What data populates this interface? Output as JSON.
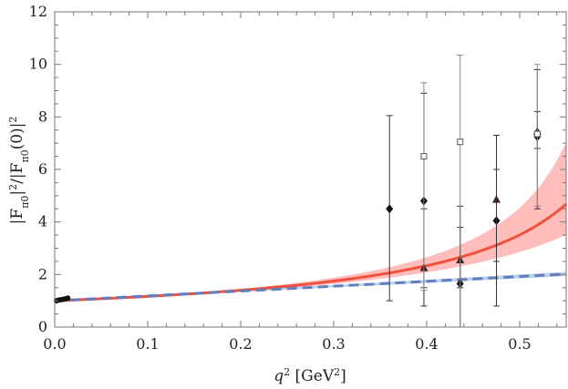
{
  "chart_data": {
    "type": "scatter",
    "title": "",
    "xlabel": {
      "main": "q",
      "sup": "2",
      "unit_open": " [GeV",
      "unit_sup": "2",
      "unit_close": "]"
    },
    "ylabel": {
      "p1": "|F",
      "s1": "π0",
      "p2": "|",
      "sup1": "2",
      "p3": "/|F",
      "s2": "π0",
      "p4": "(0)|",
      "sup2": "2"
    },
    "xlim": [
      0,
      0.55
    ],
    "ylim": [
      0,
      12
    ],
    "xticks": [
      "0.0",
      "0.1",
      "0.2",
      "0.3",
      "0.4",
      "0.5"
    ],
    "xtick_values": [
      0.0,
      0.1,
      0.2,
      0.3,
      0.4,
      0.5
    ],
    "yticks": [
      "0",
      "2",
      "4",
      "6",
      "8",
      "10",
      "12"
    ],
    "ytick_values": [
      0,
      2,
      4,
      6,
      8,
      10,
      12
    ],
    "grid": false,
    "colors": {
      "red_curve": "#f0503c",
      "red_band": "#ffb3b0",
      "blue_curve": "#5f7fc0",
      "blue_band": "#b9cbe8",
      "markers": "#111111",
      "triangle_marker": "#3a2424",
      "errorbar": "#333333",
      "square_errorbar": "#888888",
      "frame": "#777777"
    },
    "curves": [
      {
        "style": "solid",
        "form": "1/(1-a*q2)",
        "a": 1.43,
        "band": {
          "low_a": 1.3,
          "high_a": 1.56
        }
      },
      {
        "style": "dashed",
        "form": "1+b*q2",
        "b": 1.85,
        "band": {
          "low_b": 1.7,
          "high_b": 2.0
        }
      }
    ],
    "series": [
      {
        "marker": "diamond",
        "points": [
          {
            "x": 0.36,
            "y": 4.5,
            "ylo": 1.0,
            "yhi": 8.05
          },
          {
            "x": 0.397,
            "y": 4.8,
            "ylo": 0.8,
            "yhi": 8.9
          },
          {
            "x": 0.436,
            "y": 1.65,
            "ylo": 0.0,
            "yhi": 4.6
          },
          {
            "x": 0.475,
            "y": 4.05,
            "ylo": 0.8,
            "yhi": 7.3
          },
          {
            "x": 0.519,
            "y": 7.25,
            "ylo": 4.5,
            "yhi": 9.8
          }
        ]
      },
      {
        "marker": "triangle",
        "points": [
          {
            "x": 0.397,
            "y": 2.25,
            "ylo": 1.5,
            "yhi": 4.5
          },
          {
            "x": 0.436,
            "y": 2.55,
            "ylo": 1.5,
            "yhi": 3.8
          },
          {
            "x": 0.475,
            "y": 4.85,
            "ylo": 2.5,
            "yhi": 6.0
          },
          {
            "x": 0.519,
            "y": 7.45,
            "ylo": 6.8,
            "yhi": 8.2
          }
        ]
      },
      {
        "marker": "square-open",
        "points": [
          {
            "x": 0.397,
            "y": 6.5,
            "ylo": 1.4,
            "yhi": 9.3
          },
          {
            "x": 0.436,
            "y": 7.05,
            "ylo": 0.0,
            "yhi": 10.35
          },
          {
            "x": 0.519,
            "y": 7.35,
            "ylo": 4.6,
            "yhi": 10.0
          }
        ]
      },
      {
        "marker": "circle-small",
        "points": [
          {
            "x": 0.002,
            "y": 1.0,
            "ylo": 0.92,
            "yhi": 1.1
          },
          {
            "x": 0.005,
            "y": 1.03,
            "ylo": 0.95,
            "yhi": 1.12
          },
          {
            "x": 0.008,
            "y": 1.05,
            "ylo": 0.97,
            "yhi": 1.13
          },
          {
            "x": 0.011,
            "y": 1.07,
            "ylo": 0.99,
            "yhi": 1.15
          },
          {
            "x": 0.014,
            "y": 1.1,
            "ylo": 1.02,
            "yhi": 1.18
          }
        ]
      }
    ]
  }
}
